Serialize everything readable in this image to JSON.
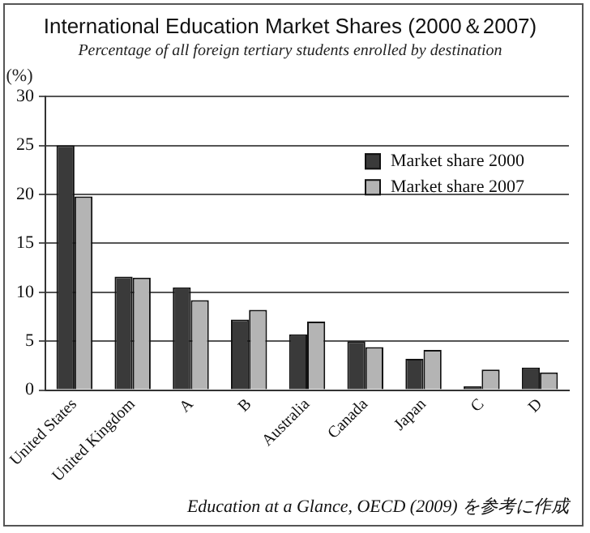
{
  "chart_data": {
    "type": "bar",
    "title": "International Education Market Shares (2000＆2007)",
    "subtitle": "Percentage of all foreign tertiary students enrolled by destination",
    "ylabel": "(%)",
    "categories": [
      "United States",
      "United Kingdom",
      "A",
      "B",
      "Australia",
      "Canada",
      "Japan",
      "C",
      "D"
    ],
    "series": [
      {
        "name": "Market share 2000",
        "color": "#3a3a3a",
        "values": [
          25,
          11.6,
          10.5,
          7.2,
          5.7,
          5.0,
          3.2,
          0.4,
          2.3
        ]
      },
      {
        "name": "Market share 2007",
        "color": "#b4b4b4",
        "values": [
          19.8,
          11.5,
          9.2,
          8.2,
          7.0,
          4.4,
          4.1,
          2.1,
          1.8
        ]
      }
    ],
    "ylim": [
      0,
      30
    ],
    "yticks": [
      0,
      5,
      10,
      15,
      20,
      25,
      30
    ],
    "grid": "y",
    "legend": "top right",
    "annotations": [
      "Education at a Glance, OECD (2009) を参考に作成"
    ]
  }
}
